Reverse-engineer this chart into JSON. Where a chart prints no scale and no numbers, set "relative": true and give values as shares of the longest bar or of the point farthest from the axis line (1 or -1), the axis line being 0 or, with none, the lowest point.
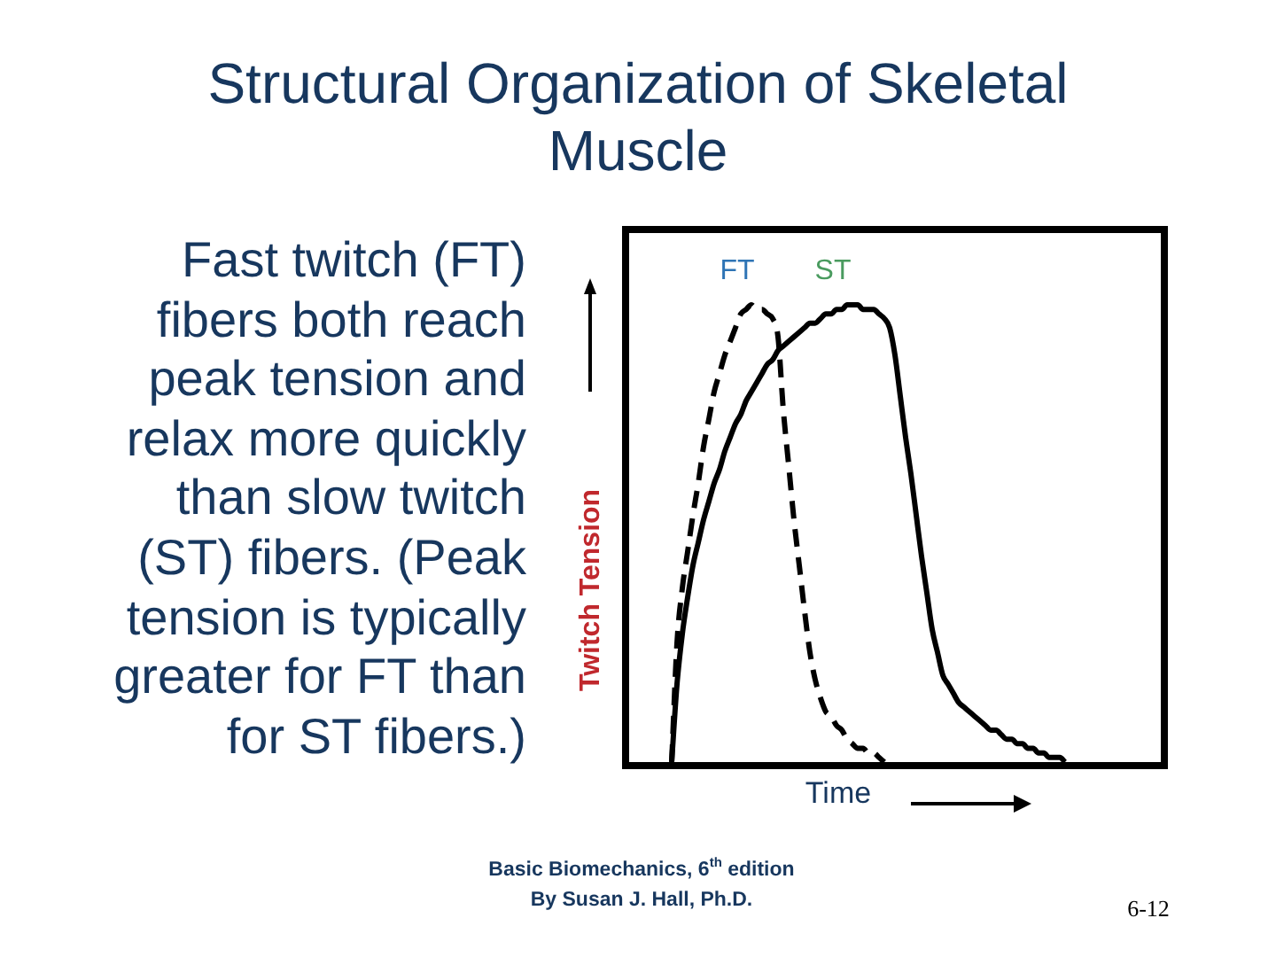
{
  "chart_data": {
    "type": "line",
    "title": "Structural Organization of Skeletal Muscle",
    "xlabel": "Time",
    "ylabel": "Twitch Tension",
    "annotations": [
      "Fast twitch (FT) fibers both reach peak tension and relax more quickly than slow twitch (ST) fibers. (Peak tension is typically greater for FT than for ST fibers.)",
      "Basic Biomechanics, 6$^{th}$ edition By Susan J. Hall, Ph.D.",
      "6-12"
    ],
    "relative": true,
    "tick_labels": false,
    "marker": "none",
    "categories": [
      null,
      null,
      null,
      null,
      null,
      null,
      null,
      null,
      null,
      null,
      null,
      null,
      null,
      null,
      null,
      null,
      null,
      null,
      null,
      null,
      null,
      null,
      null,
      null,
      null,
      null,
      null,
      null,
      null,
      null,
      null,
      null,
      null,
      null,
      null,
      null,
      null,
      null,
      null,
      null,
      null,
      null,
      null,
      null,
      null,
      null,
      null,
      null,
      null,
      null,
      null,
      null,
      null,
      null,
      null,
      null,
      null,
      null,
      null,
      null,
      null,
      null,
      null,
      null,
      null,
      null,
      null,
      null,
      null,
      null,
      null,
      null,
      null,
      null,
      null,
      null,
      null,
      null,
      null,
      null,
      null,
      null,
      null,
      null,
      null,
      null,
      null,
      null,
      null,
      null,
      null,
      null,
      null,
      null,
      null,
      null,
      null,
      null,
      null,
      null,
      null
    ],
    "series": [
      {
        "name": "FT",
        "color": "#000000",
        "line_style": "dashed",
        "values": [
          null,
          null,
          null,
          null,
          null,
          null,
          null,
          null,
          0,
          0.26,
          0.38,
          0.46,
          0.54,
          0.61,
          0.69,
          0.75,
          0.81,
          0.85,
          0.89,
          0.92,
          0.95,
          0.98,
          0.99,
          1,
          0.99,
          0.99,
          0.98,
          0.97,
          0.93,
          0.77,
          0.65,
          0.53,
          0.43,
          0.33,
          0.24,
          0.18,
          0.14,
          0.11,
          0.1,
          0.08,
          0.07,
          0.05,
          0.04,
          0.03,
          0.03,
          0.02,
          0.02,
          0.01,
          0,
          null,
          null,
          null,
          null,
          null,
          null,
          null,
          null,
          null,
          null,
          null,
          null,
          null,
          null,
          null,
          null,
          null,
          null,
          null,
          null,
          null,
          null,
          null,
          null,
          null,
          null,
          null,
          null,
          null,
          null,
          null,
          null,
          null,
          null,
          null,
          null,
          null,
          null,
          null,
          null,
          null,
          null,
          null,
          null,
          null,
          null,
          null,
          null,
          null,
          null,
          null,
          null
        ]
      },
      {
        "name": "ST",
        "color": "#000000",
        "line_style": "solid",
        "values": [
          null,
          null,
          null,
          null,
          null,
          null,
          null,
          null,
          0,
          0.17,
          0.28,
          0.36,
          0.43,
          0.48,
          0.53,
          0.57,
          0.61,
          0.64,
          0.68,
          0.71,
          0.74,
          0.76,
          0.79,
          0.81,
          0.83,
          0.85,
          0.87,
          0.88,
          0.9,
          0.91,
          0.92,
          0.93,
          0.94,
          0.95,
          0.96,
          0.96,
          0.97,
          0.98,
          0.98,
          0.99,
          0.99,
          1,
          1,
          1,
          0.99,
          0.99,
          0.99,
          0.98,
          0.97,
          0.95,
          0.89,
          0.8,
          0.71,
          0.63,
          0.54,
          0.45,
          0.37,
          0.29,
          0.24,
          0.19,
          0.17,
          0.15,
          0.13,
          0.12,
          0.11,
          0.1,
          0.09,
          0.08,
          0.07,
          0.07,
          0.06,
          0.05,
          0.05,
          0.04,
          0.04,
          0.03,
          0.03,
          0.02,
          0.02,
          0.01,
          0.01,
          0.01,
          0,
          null,
          null,
          null,
          null,
          null,
          null,
          null,
          null,
          null,
          null,
          null,
          null,
          null,
          null,
          null,
          null,
          null,
          null
        ]
      }
    ]
  }
}
